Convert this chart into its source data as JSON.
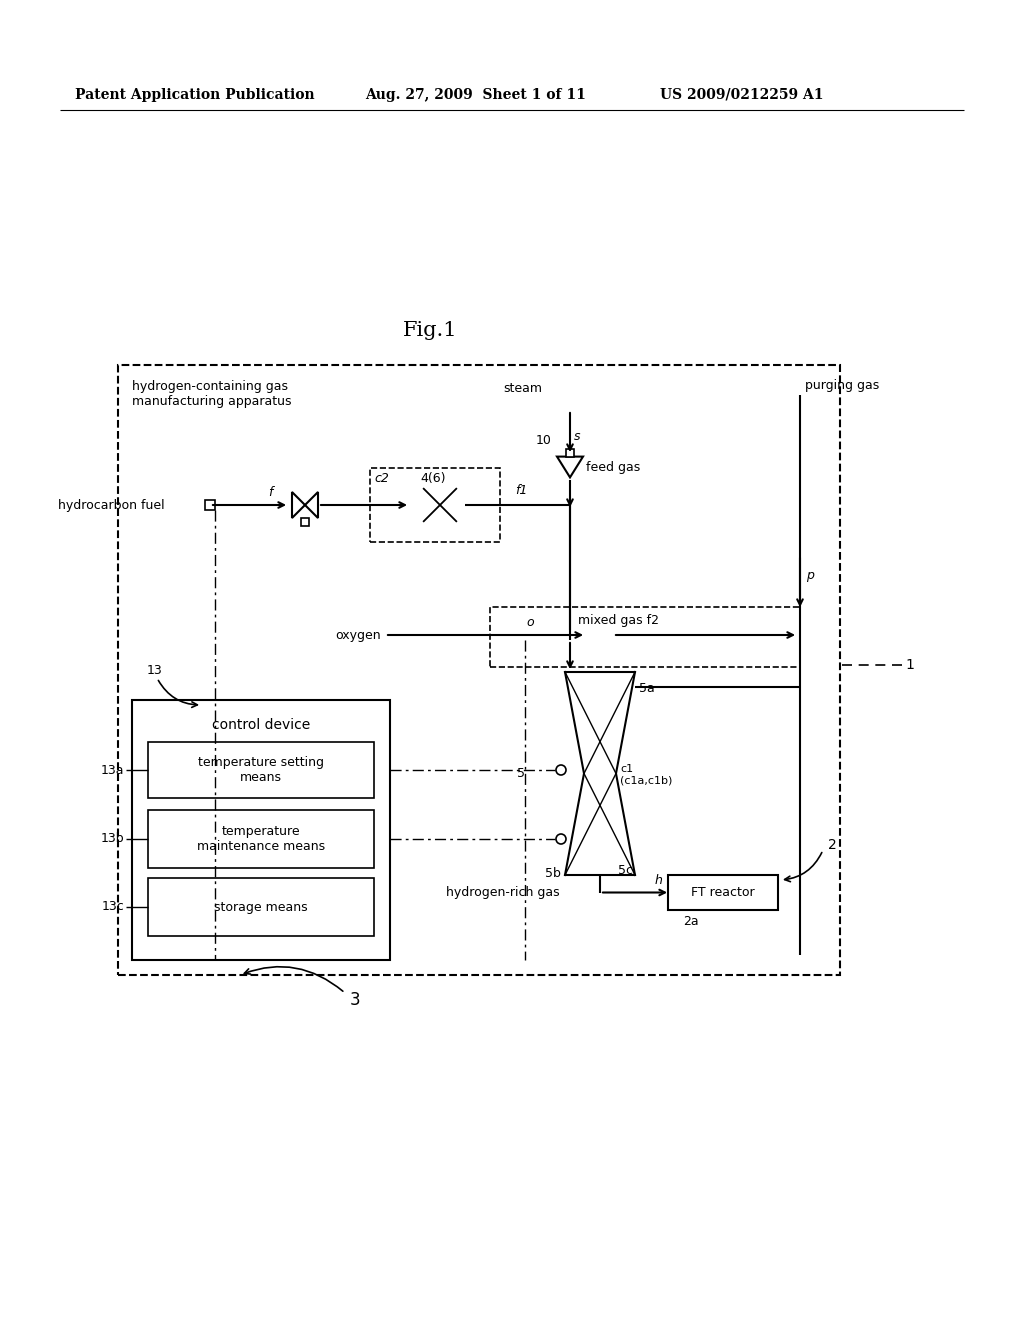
{
  "bg_color": "#ffffff",
  "header_left": "Patent Application Publication",
  "header_mid": "Aug. 27, 2009  Sheet 1 of 11",
  "header_right": "US 2009/0212259 A1",
  "fig_title": "Fig.1",
  "main_box_label": "hydrogen-containing gas\nmanufacturing apparatus",
  "text_hydrocarbon_fuel": "hydrocarbon fuel",
  "text_steam": "steam",
  "text_purging_gas": "purging gas",
  "text_feed_gas": "feed gas",
  "text_oxygen": "oxygen",
  "text_hydrogen_rich_gas": "hydrogen-rich gas",
  "text_ft_reactor": "FT reactor",
  "text_control_device": "control device",
  "text_temp_setting": "temperature setting\nmeans",
  "text_temp_maintenance": "temperature\nmaintenance means",
  "text_storage": "storage means"
}
